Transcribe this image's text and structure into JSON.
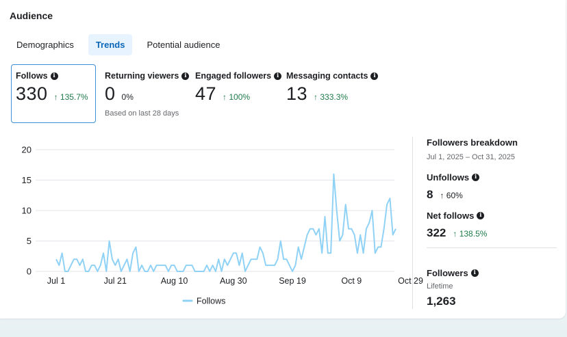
{
  "section_title": "Audience",
  "tabs": [
    {
      "label": "Demographics"
    },
    {
      "label": "Trends"
    },
    {
      "label": "Potential audience"
    }
  ],
  "metrics": {
    "follows": {
      "label": "Follows",
      "value": "330",
      "change": "↑ 135.7%"
    },
    "returning_viewers": {
      "label": "Returning viewers",
      "value": "0",
      "change": "0%",
      "note": "Based on last 28 days"
    },
    "engaged_followers": {
      "label": "Engaged followers",
      "value": "47",
      "change": "↑ 100%"
    },
    "messaging_contacts": {
      "label": "Messaging contacts",
      "value": "13",
      "change": "↑ 333.3%"
    }
  },
  "breakdown": {
    "title": "Followers breakdown",
    "date_range": "Jul 1, 2025 – Oct 31, 2025",
    "unfollows": {
      "label": "Unfollows",
      "value": "8",
      "change": "↑ 60%"
    },
    "net_follows": {
      "label": "Net follows",
      "value": "322",
      "change": "↑ 138.5%"
    },
    "followers": {
      "label": "Followers",
      "sub": "Lifetime",
      "value": "1,263"
    }
  },
  "colors": {
    "series": "#8fd2f5",
    "grid": "#e4e6eb",
    "up": "#1e7a4a",
    "accent": "#0a66b7"
  },
  "chart_data": {
    "type": "line",
    "ylim": [
      0,
      20
    ],
    "yticks": [
      "0",
      "5",
      "10",
      "15",
      "20"
    ],
    "xticks": [
      "Jul 1",
      "Jul 21",
      "Aug 10",
      "Aug 30",
      "Sep 19",
      "Oct 9",
      "Oct 29"
    ],
    "grid": true,
    "legend": "bottom",
    "series": [
      {
        "name": "Follows",
        "values": [
          2,
          1,
          3,
          0,
          0,
          1,
          2,
          2,
          1,
          2,
          0,
          0,
          1,
          1,
          0,
          1,
          3,
          0,
          5,
          2,
          1,
          2,
          0,
          1,
          2,
          0,
          3,
          4,
          0,
          1,
          0,
          0,
          1,
          0,
          1,
          1,
          1,
          1,
          0,
          1,
          1,
          0,
          0,
          0,
          1,
          1,
          1,
          0,
          0,
          0,
          0,
          1,
          0,
          1,
          0,
          2,
          0,
          2,
          1,
          2,
          3,
          3,
          1,
          3,
          0,
          1,
          2,
          2,
          2,
          4,
          3,
          1,
          1,
          1,
          1,
          2,
          5,
          2,
          2,
          1,
          0,
          1,
          4,
          2,
          4,
          6,
          7,
          7,
          6,
          7,
          3,
          9,
          3,
          3,
          16,
          10,
          5,
          6,
          11,
          7,
          7,
          6,
          3,
          6,
          3,
          7,
          8,
          10,
          3,
          4,
          4,
          7,
          11,
          12,
          6,
          7
        ]
      }
    ]
  }
}
